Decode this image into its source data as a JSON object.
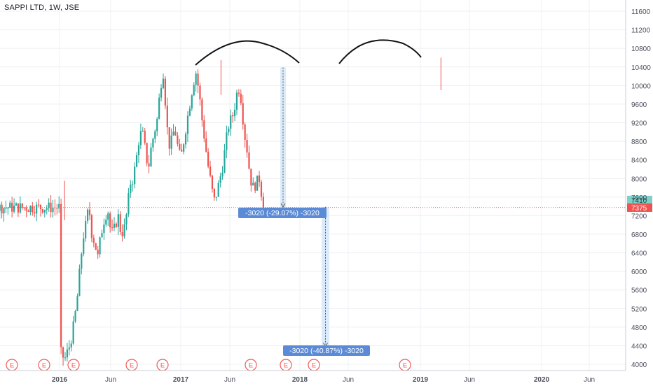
{
  "header": {
    "title": "SAPPI LTD, 1W, JSE"
  },
  "colors": {
    "up": "#26a69a",
    "down": "#ef5350",
    "grid": "#eef0f3",
    "axis_text": "#4a4f5c",
    "measure_fill": "#d6e8fb",
    "measure_label_bg": "#5b8bd6",
    "last_price_bg": "#ef5350",
    "prev_price_bg": "#7fd0c8",
    "earnings": "#f05a5a"
  },
  "chart_data": {
    "type": "candlestick",
    "symbol": "SAPPI LTD",
    "interval": "1W",
    "exchange": "JSE",
    "x_tick_labels": [
      "2016",
      "Jun",
      "2017",
      "Jun",
      "2018",
      "Jun",
      "2019",
      "Jun",
      "2020",
      "Jun"
    ],
    "y_tick_labels": [
      "11600",
      "11200",
      "10800",
      "10400",
      "10000",
      "9600",
      "9200",
      "8800",
      "8400",
      "8000",
      "7600",
      "7200",
      "6800",
      "6400",
      "6000",
      "5600",
      "5200",
      "4800",
      "4400",
      "4000"
    ],
    "ylim": [
      3900,
      11700
    ],
    "price_tags": {
      "upper": "7410",
      "lower": "7375"
    },
    "annotations": [
      {
        "kind": "measure",
        "label": "-3020 (-29.07%) -3020",
        "from": 10390,
        "to": 7370
      },
      {
        "kind": "measure",
        "label": "-3020 (-40.87%) -3020",
        "from": 7390,
        "to": 4370
      }
    ],
    "earnings_markers": [
      "E",
      "E",
      "E",
      "E",
      "E",
      "E",
      "E",
      "E",
      "E"
    ],
    "drawings": [
      "arc-left-shoulder",
      "arc-right-shoulder"
    ],
    "grid": true,
    "anchors": [
      [
        0.0,
        4300
      ],
      [
        0.5,
        4100
      ],
      [
        1.0,
        4400
      ],
      [
        1.3,
        4700
      ],
      [
        1.7,
        5300
      ],
      [
        2.0,
        6000
      ],
      [
        2.3,
        6700
      ],
      [
        2.6,
        7000
      ],
      [
        2.9,
        7400
      ],
      [
        3.2,
        6800
      ],
      [
        3.5,
        6600
      ],
      [
        3.8,
        6300
      ],
      [
        4.1,
        6800
      ],
      [
        4.5,
        7200
      ],
      [
        4.8,
        7300
      ],
      [
        5.1,
        6800
      ],
      [
        5.4,
        6900
      ],
      [
        5.8,
        7200
      ],
      [
        6.1,
        6800
      ],
      [
        6.4,
        6900
      ],
      [
        6.7,
        7300
      ],
      [
        7.0,
        7900
      ],
      [
        7.3,
        8000
      ],
      [
        7.6,
        8400
      ],
      [
        7.9,
        8900
      ],
      [
        8.2,
        9000
      ],
      [
        8.5,
        8600
      ],
      [
        8.8,
        8200
      ],
      [
        9.1,
        8700
      ],
      [
        9.4,
        9000
      ],
      [
        9.7,
        9300
      ],
      [
        10.0,
        10000
      ],
      [
        10.3,
        10300
      ],
      [
        10.5,
        9600
      ],
      [
        10.8,
        8700
      ],
      [
        11.1,
        8800
      ],
      [
        11.4,
        9100
      ],
      [
        11.7,
        8700
      ],
      [
        12.0,
        8400
      ],
      [
        12.3,
        8800
      ],
      [
        12.6,
        9200
      ],
      [
        12.9,
        9600
      ],
      [
        13.2,
        10000
      ],
      [
        13.5,
        10300
      ],
      [
        13.8,
        9900
      ],
      [
        14.1,
        9300
      ],
      [
        14.4,
        8800
      ],
      [
        14.7,
        8300
      ],
      [
        15.0,
        7900
      ],
      [
        15.3,
        7500
      ],
      [
        15.6,
        7700
      ],
      [
        15.9,
        8000
      ],
      [
        16.2,
        8300
      ],
      [
        16.5,
        8800
      ],
      [
        16.8,
        9200
      ],
      [
        17.1,
        9300
      ],
      [
        17.4,
        9600
      ],
      [
        17.7,
        10000
      ],
      [
        18.0,
        9700
      ],
      [
        18.3,
        9000
      ],
      [
        18.6,
        8600
      ],
      [
        18.9,
        8000
      ],
      [
        19.2,
        7800
      ],
      [
        19.5,
        7900
      ],
      [
        19.8,
        8000
      ],
      [
        20.0,
        7700
      ],
      [
        20.2,
        7375
      ]
    ]
  }
}
